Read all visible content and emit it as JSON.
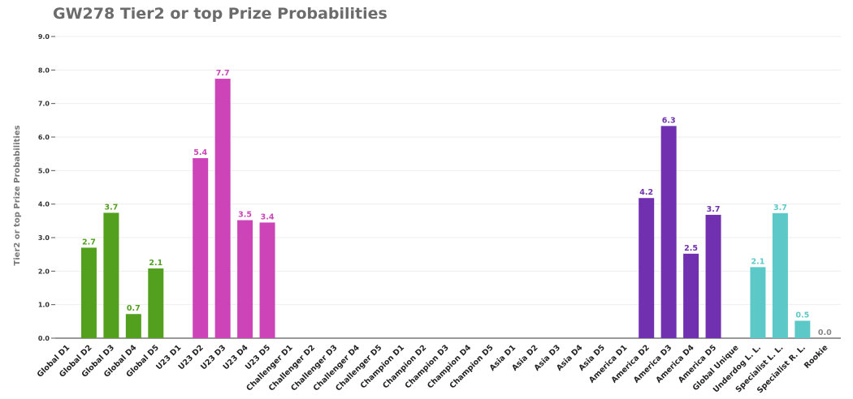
{
  "chart_data": {
    "type": "bar",
    "title": "GW278 Tier2 or top Prize Probabilities",
    "xlabel": "",
    "ylabel": "Tier2 or top Prize Probabilities",
    "ylim": [
      0,
      9
    ],
    "yticks": [
      "0.0",
      "1.0",
      "2.0",
      "3.0",
      "4.0",
      "5.0",
      "6.0",
      "7.0",
      "8.0",
      "9.0"
    ],
    "grid": true,
    "categories": [
      "Global D1",
      "Global D2",
      "Global D3",
      "Global D4",
      "Global D5",
      "U23 D1",
      "U23 D2",
      "U23 D3",
      "U23 D4",
      "U23 D5",
      "Challenger D1",
      "Challenger D2",
      "Challenger D3",
      "Challenger D4",
      "Challenger D5",
      "Champion D1",
      "Champion D2",
      "Champion D3",
      "Champion D4",
      "Champion D5",
      "Asia D1",
      "Asia D2",
      "Asia D3",
      "Asia D4",
      "Asia D5",
      "America D1",
      "America D2",
      "America D3",
      "America D4",
      "America D5",
      "Global Unique",
      "Underdog L. L.",
      "Specialist L. L.",
      "Specialist R. L.",
      "Rookie"
    ],
    "values": [
      null,
      2.7,
      3.74,
      0.72,
      2.08,
      null,
      5.37,
      7.74,
      3.52,
      3.45,
      null,
      null,
      null,
      null,
      null,
      null,
      null,
      null,
      null,
      null,
      null,
      null,
      null,
      null,
      null,
      null,
      4.18,
      6.33,
      2.52,
      3.68,
      null,
      2.12,
      3.73,
      0.52,
      0.0
    ],
    "data_labels": [
      "",
      "2.7",
      "3.7",
      "0.7",
      "2.1",
      "",
      "5.4",
      "7.7",
      "3.5",
      "3.4",
      "",
      "",
      "",
      "",
      "",
      "",
      "",
      "",
      "",
      "",
      "",
      "",
      "",
      "",
      "",
      "",
      "4.2",
      "6.3",
      "2.5",
      "3.7",
      "",
      "2.1",
      "3.7",
      "0.5",
      "0.0"
    ],
    "colors": [
      "#52a01d",
      "#52a01d",
      "#52a01d",
      "#52a01d",
      "#52a01d",
      "#cc44b8",
      "#cc44b8",
      "#cc44b8",
      "#cc44b8",
      "#cc44b8",
      "#888888",
      "#888888",
      "#888888",
      "#888888",
      "#888888",
      "#888888",
      "#888888",
      "#888888",
      "#888888",
      "#888888",
      "#888888",
      "#888888",
      "#888888",
      "#888888",
      "#888888",
      "#7030b0",
      "#7030b0",
      "#7030b0",
      "#7030b0",
      "#7030b0",
      "#5cc8c8",
      "#5cc8c8",
      "#5cc8c8",
      "#5cc8c8",
      "#888888"
    ]
  }
}
